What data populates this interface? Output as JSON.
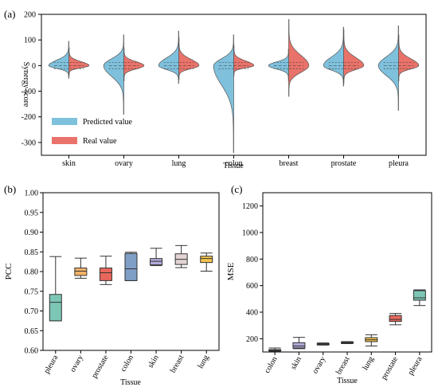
{
  "chart_data": [
    {
      "panel_label": "(a)",
      "type": "violin",
      "xlabel": "Tissue",
      "ylabel": "Synergy score",
      "ylim": [
        -350,
        200
      ],
      "yticks": [
        -300,
        -200,
        -100,
        0,
        100,
        200
      ],
      "categories": [
        "skin",
        "ovary",
        "lung",
        "colon",
        "breast",
        "prostate",
        "pleura"
      ],
      "series": [
        {
          "name": "Predicted value",
          "color": "#7fc1dc",
          "min": [
            -50,
            -190,
            -70,
            -340,
            -60,
            -80,
            -175
          ],
          "max": [
            95,
            120,
            135,
            120,
            65,
            150,
            155
          ]
        },
        {
          "name": "Real value",
          "color": "#e9736a",
          "min": [
            -40,
            -60,
            -55,
            -40,
            -120,
            -70,
            -60
          ],
          "max": [
            70,
            70,
            110,
            80,
            180,
            140,
            120
          ]
        }
      ],
      "legend": {
        "placement": "lower-left"
      }
    },
    {
      "panel_label": "(b)",
      "type": "box",
      "xlabel": "Tissue",
      "ylabel": "PCC",
      "ylim": [
        0.6,
        1.0
      ],
      "yticks": [
        0.6,
        0.65,
        0.7,
        0.75,
        0.8,
        0.85,
        0.9,
        0.95,
        1.0
      ],
      "categories": [
        "pleura",
        "ovary",
        "prostate",
        "colon",
        "skin",
        "breast",
        "lung"
      ],
      "colors": [
        "#7cc6b5",
        "#f5b366",
        "#e8675c",
        "#7f9fc6",
        "#b3aadb",
        "#e3d3d4",
        "#f3c44c"
      ],
      "boxes": [
        {
          "min": 0.675,
          "q1": 0.675,
          "median": 0.722,
          "q3": 0.742,
          "max": 0.838
        },
        {
          "min": 0.783,
          "q1": 0.79,
          "median": 0.801,
          "q3": 0.809,
          "max": 0.834
        },
        {
          "min": 0.767,
          "q1": 0.777,
          "median": 0.797,
          "q3": 0.809,
          "max": 0.839
        },
        {
          "min": 0.777,
          "q1": 0.777,
          "median": 0.807,
          "q3": 0.846,
          "max": 0.849
        },
        {
          "min": 0.815,
          "q1": 0.817,
          "median": 0.826,
          "q3": 0.833,
          "max": 0.859
        },
        {
          "min": 0.81,
          "q1": 0.818,
          "median": 0.831,
          "q3": 0.845,
          "max": 0.866
        },
        {
          "min": 0.801,
          "q1": 0.823,
          "median": 0.833,
          "q3": 0.839,
          "max": 0.847
        }
      ]
    },
    {
      "panel_label": "(c)",
      "type": "box",
      "xlabel": "Tissue",
      "ylabel": "MSE",
      "ylim": [
        100,
        1300
      ],
      "yticks": [
        200,
        400,
        600,
        800,
        1000,
        1200
      ],
      "categories": [
        "colon",
        "skin",
        "ovary",
        "breast",
        "lung",
        "prostate",
        "pleura"
      ],
      "colors": [
        "#7f9fc6",
        "#b3aadb",
        "#f5b366",
        "#e3d3d4",
        "#f3c44c",
        "#e8675c",
        "#7cc6b5"
      ],
      "boxes": [
        {
          "min": 105,
          "q1": 108,
          "median": 112,
          "q3": 118,
          "max": 130
        },
        {
          "min": 125,
          "q1": 130,
          "median": 145,
          "q3": 170,
          "max": 210
        },
        {
          "min": 152,
          "q1": 155,
          "median": 160,
          "q3": 163,
          "max": 168
        },
        {
          "min": 163,
          "q1": 166,
          "median": 170,
          "q3": 174,
          "max": 178
        },
        {
          "min": 145,
          "q1": 178,
          "median": 192,
          "q3": 208,
          "max": 230
        },
        {
          "min": 305,
          "q1": 330,
          "median": 345,
          "q3": 375,
          "max": 390
        },
        {
          "min": 450,
          "q1": 490,
          "median": 508,
          "q3": 562,
          "max": 568
        }
      ]
    }
  ]
}
